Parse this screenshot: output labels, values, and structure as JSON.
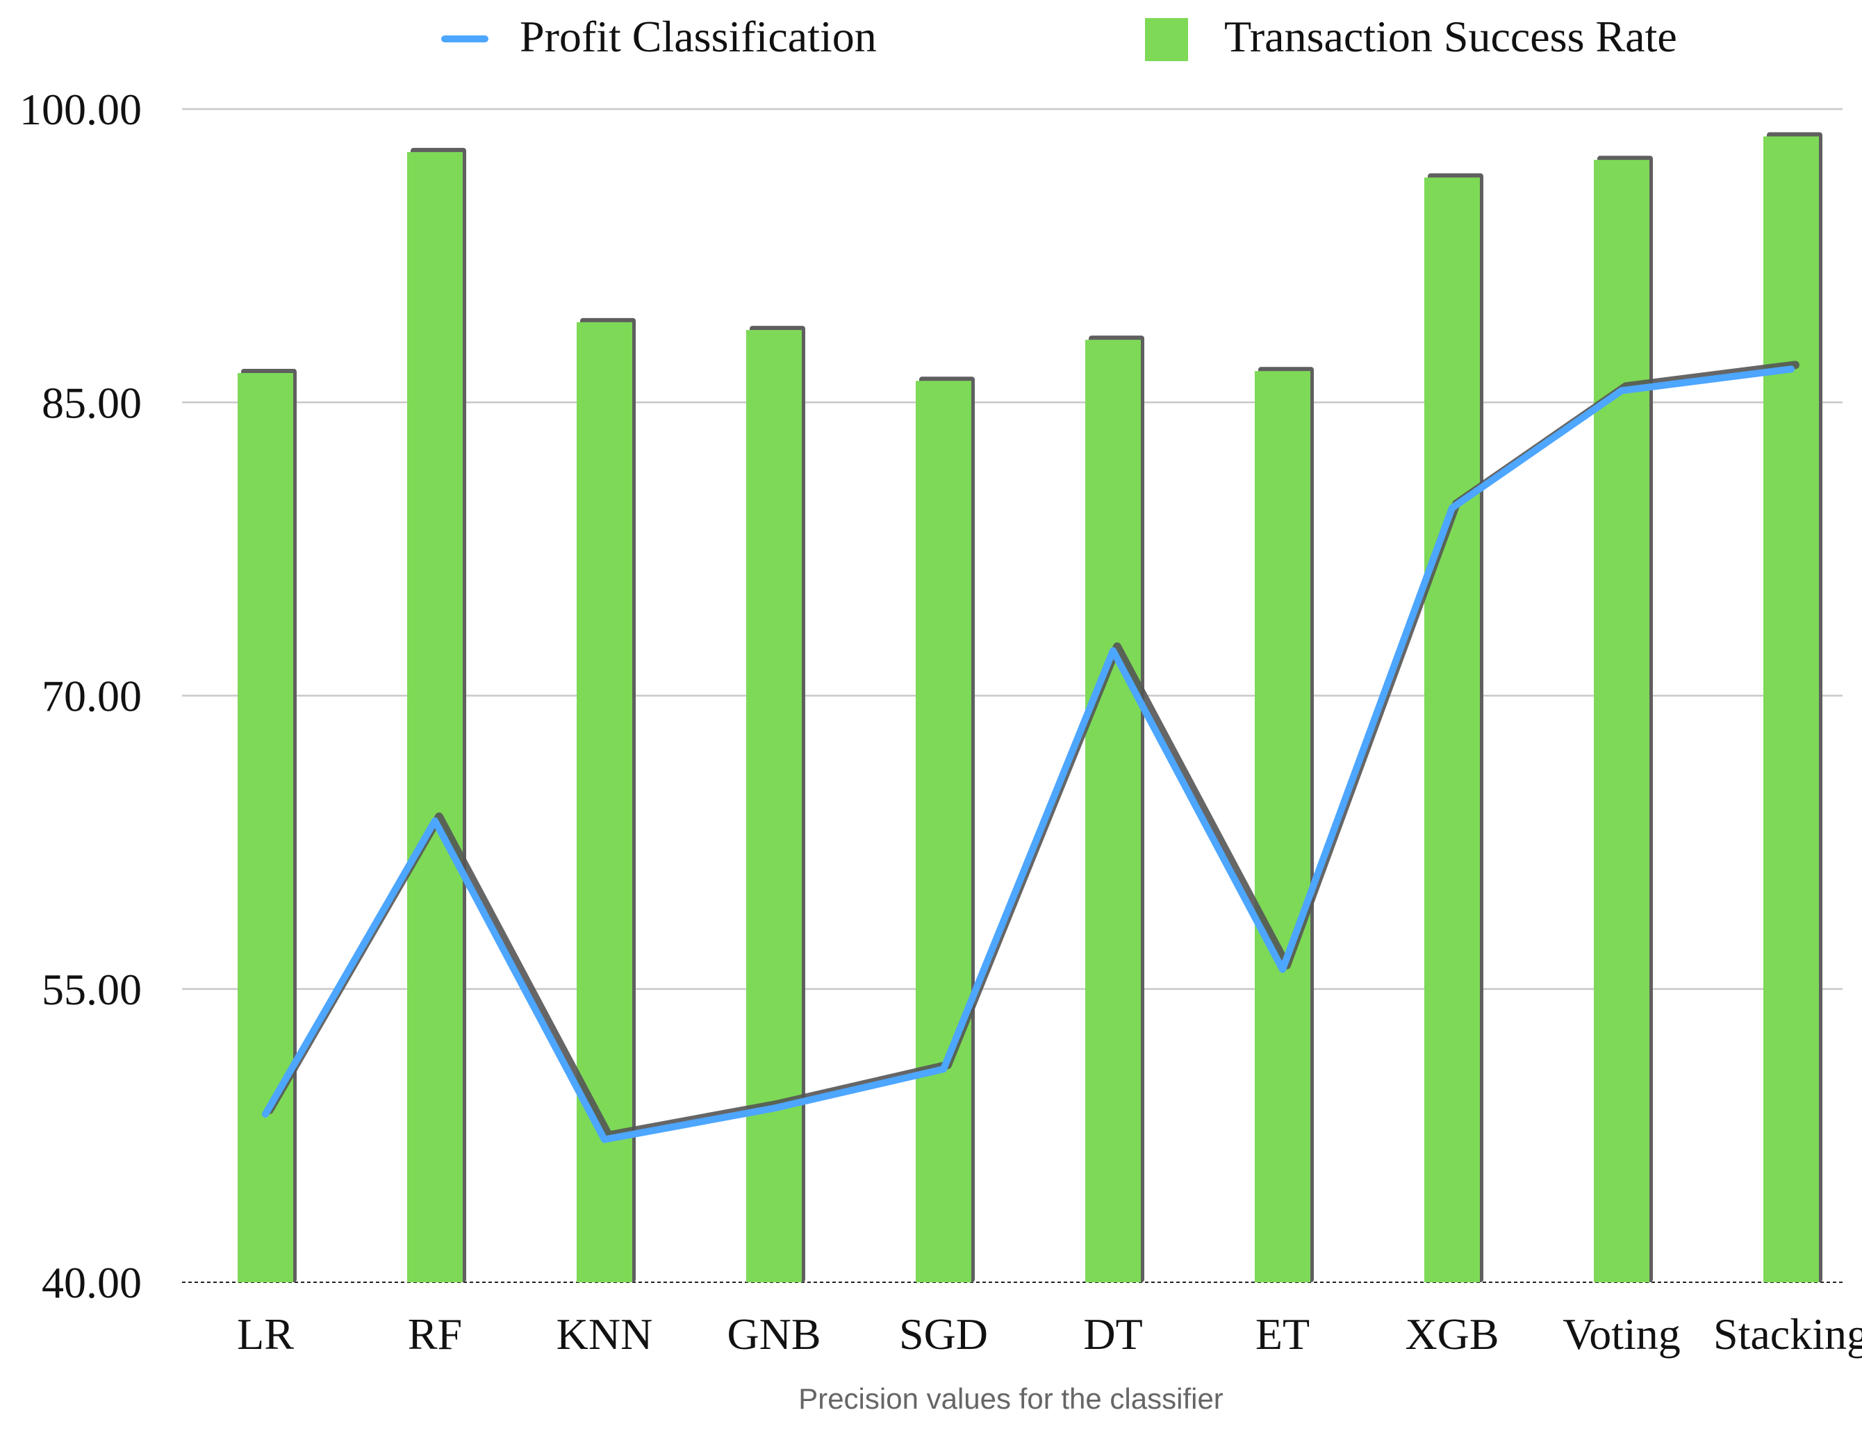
{
  "chart_data": {
    "type": "bar",
    "title": "",
    "xlabel": "Precision values for the classifier",
    "ylabel": "",
    "ylim": [
      40,
      100
    ],
    "yticks": [
      40,
      55,
      70,
      85,
      100
    ],
    "ytick_labels": [
      "40.00",
      "55.00",
      "70.00",
      "85.00",
      "100.00"
    ],
    "categories": [
      "LR",
      "RF",
      "KNN",
      "GNB",
      "SGD",
      "DT",
      "ET",
      "XGB",
      "Voting",
      "Stacking"
    ],
    "series": [
      {
        "name": "Transaction Success Rate",
        "kind": "bar",
        "color": "#7ed957",
        "values": [
          86.5,
          97.8,
          89.1,
          88.7,
          86.1,
          88.2,
          86.6,
          96.5,
          97.4,
          98.6
        ]
      },
      {
        "name": "Profit Classification",
        "kind": "line",
        "color": "#4da6ff",
        "values": [
          48.6,
          63.6,
          47.3,
          48.9,
          50.9,
          72.3,
          56.0,
          79.6,
          85.6,
          86.7
        ]
      }
    ],
    "legend_position": "top-center",
    "grid": true
  },
  "colors": {
    "bar": "#7ed957",
    "bar_shadow": "#5f5f5f",
    "line": "#4da6ff",
    "line_shadow": "#555555",
    "grid": "#c8c8c8",
    "axis_text": "#111111",
    "xlabel_text": "#666666"
  }
}
